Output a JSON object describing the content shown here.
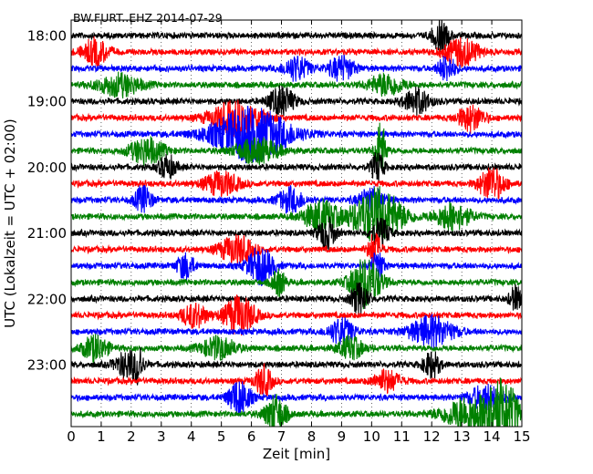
{
  "chart_data": {
    "type": "line",
    "title": "BW.FURT..EHZ 2014-07-29",
    "xlabel": "Zeit  [min]",
    "ylabel": "UTC (Lokalzeit = UTC + 02:00)",
    "xlim": [
      0,
      15
    ],
    "x_ticks": [
      0,
      1,
      2,
      3,
      4,
      5,
      6,
      7,
      8,
      9,
      10,
      11,
      12,
      13,
      14,
      15
    ],
    "x_tick_labels": [
      "0",
      "1",
      "2",
      "3",
      "4",
      "5",
      "6",
      "7",
      "8",
      "9",
      "10",
      "11",
      "12",
      "13",
      "14",
      "15"
    ],
    "y_tick_labels": [
      "18:00",
      "19:00",
      "20:00",
      "21:00",
      "22:00",
      "23:00"
    ],
    "trace_start_hour": 18,
    "trace_interval_minutes": 15,
    "trace_count": 24,
    "colors": [
      "#000000",
      "#ff0000",
      "#0000ff",
      "#008000"
    ],
    "grid": "vertical dotted at each minute",
    "series": [
      {
        "hour": 18,
        "minute": 0,
        "color": "#000000",
        "events": [
          {
            "t": 12.3,
            "a": 1.6,
            "w": 0.2
          }
        ]
      },
      {
        "hour": 18,
        "minute": 15,
        "color": "#ff0000",
        "events": [
          {
            "t": 0.8,
            "a": 1.4,
            "w": 0.3
          },
          {
            "t": 13.0,
            "a": 1.5,
            "w": 0.4
          }
        ]
      },
      {
        "hour": 18,
        "minute": 30,
        "color": "#0000ff",
        "events": [
          {
            "t": 7.5,
            "a": 1.3,
            "w": 0.3
          },
          {
            "t": 9.0,
            "a": 1.3,
            "w": 0.3
          },
          {
            "t": 12.5,
            "a": 1.4,
            "w": 0.2
          }
        ]
      },
      {
        "hour": 18,
        "minute": 45,
        "color": "#008000",
        "events": [
          {
            "t": 1.6,
            "a": 1.2,
            "w": 0.5
          },
          {
            "t": 10.5,
            "a": 1.2,
            "w": 0.4
          }
        ]
      },
      {
        "hour": 19,
        "minute": 0,
        "color": "#000000",
        "events": [
          {
            "t": 7.0,
            "a": 1.6,
            "w": 0.3
          },
          {
            "t": 11.5,
            "a": 1.4,
            "w": 0.3
          }
        ]
      },
      {
        "hour": 19,
        "minute": 15,
        "color": "#ff0000",
        "events": [
          {
            "t": 5.5,
            "a": 1.8,
            "w": 0.6
          },
          {
            "t": 13.3,
            "a": 1.4,
            "w": 0.3
          }
        ]
      },
      {
        "hour": 19,
        "minute": 30,
        "color": "#0000ff",
        "events": [
          {
            "t": 6.0,
            "a": 2.9,
            "w": 0.9
          }
        ]
      },
      {
        "hour": 19,
        "minute": 45,
        "color": "#008000",
        "events": [
          {
            "t": 2.5,
            "a": 1.4,
            "w": 0.4
          },
          {
            "t": 6.2,
            "a": 1.3,
            "w": 0.5
          },
          {
            "t": 10.3,
            "a": 3.2,
            "w": 0.12
          }
        ]
      },
      {
        "hour": 20,
        "minute": 0,
        "color": "#000000",
        "events": [
          {
            "t": 3.2,
            "a": 1.3,
            "w": 0.2
          },
          {
            "t": 10.2,
            "a": 1.6,
            "w": 0.15
          }
        ]
      },
      {
        "hour": 20,
        "minute": 15,
        "color": "#ff0000",
        "events": [
          {
            "t": 5.0,
            "a": 1.3,
            "w": 0.4
          },
          {
            "t": 14.0,
            "a": 1.8,
            "w": 0.3
          }
        ]
      },
      {
        "hour": 20,
        "minute": 30,
        "color": "#0000ff",
        "events": [
          {
            "t": 2.4,
            "a": 1.5,
            "w": 0.2
          },
          {
            "t": 7.3,
            "a": 1.3,
            "w": 0.3
          },
          {
            "t": 10.0,
            "a": 1.3,
            "w": 0.3
          }
        ]
      },
      {
        "hour": 20,
        "minute": 45,
        "color": "#008000",
        "events": [
          {
            "t": 8.3,
            "a": 1.7,
            "w": 0.4
          },
          {
            "t": 10.2,
            "a": 3.0,
            "w": 0.6
          },
          {
            "t": 12.7,
            "a": 1.5,
            "w": 0.4
          }
        ]
      },
      {
        "hour": 21,
        "minute": 0,
        "color": "#000000",
        "events": [
          {
            "t": 8.5,
            "a": 1.8,
            "w": 0.2
          },
          {
            "t": 10.3,
            "a": 1.6,
            "w": 0.2
          }
        ]
      },
      {
        "hour": 21,
        "minute": 15,
        "color": "#ff0000",
        "events": [
          {
            "t": 5.5,
            "a": 1.5,
            "w": 0.4
          },
          {
            "t": 10.1,
            "a": 1.8,
            "w": 0.15
          }
        ]
      },
      {
        "hour": 21,
        "minute": 30,
        "color": "#0000ff",
        "events": [
          {
            "t": 3.8,
            "a": 1.4,
            "w": 0.2
          },
          {
            "t": 6.3,
            "a": 2.0,
            "w": 0.3
          },
          {
            "t": 10.2,
            "a": 1.6,
            "w": 0.15
          }
        ]
      },
      {
        "hour": 21,
        "minute": 45,
        "color": "#008000",
        "events": [
          {
            "t": 6.9,
            "a": 1.5,
            "w": 0.15
          },
          {
            "t": 9.8,
            "a": 2.8,
            "w": 0.35
          }
        ]
      },
      {
        "hour": 22,
        "minute": 0,
        "color": "#000000",
        "events": [
          {
            "t": 9.6,
            "a": 1.7,
            "w": 0.2
          },
          {
            "t": 14.8,
            "a": 1.3,
            "w": 0.15
          }
        ]
      },
      {
        "hour": 22,
        "minute": 15,
        "color": "#ff0000",
        "events": [
          {
            "t": 4.1,
            "a": 1.3,
            "w": 0.3
          },
          {
            "t": 5.6,
            "a": 2.2,
            "w": 0.35
          }
        ]
      },
      {
        "hour": 22,
        "minute": 30,
        "color": "#0000ff",
        "events": [
          {
            "t": 9.0,
            "a": 1.4,
            "w": 0.3
          },
          {
            "t": 12.0,
            "a": 1.7,
            "w": 0.5
          }
        ]
      },
      {
        "hour": 22,
        "minute": 45,
        "color": "#008000",
        "events": [
          {
            "t": 0.8,
            "a": 1.4,
            "w": 0.3
          },
          {
            "t": 4.9,
            "a": 1.2,
            "w": 0.4
          },
          {
            "t": 9.3,
            "a": 1.2,
            "w": 0.3
          }
        ]
      },
      {
        "hour": 23,
        "minute": 0,
        "color": "#000000",
        "events": [
          {
            "t": 1.9,
            "a": 1.5,
            "w": 0.3
          },
          {
            "t": 2.25,
            "a": 1.8,
            "w": 0.08
          },
          {
            "t": 12.0,
            "a": 1.4,
            "w": 0.2
          }
        ]
      },
      {
        "hour": 23,
        "minute": 15,
        "color": "#ff0000",
        "events": [
          {
            "t": 6.4,
            "a": 1.6,
            "w": 0.2
          },
          {
            "t": 10.5,
            "a": 1.2,
            "w": 0.3
          }
        ]
      },
      {
        "hour": 23,
        "minute": 30,
        "color": "#0000ff",
        "events": [
          {
            "t": 5.6,
            "a": 2.0,
            "w": 0.25
          },
          {
            "t": 13.8,
            "a": 1.3,
            "w": 0.4
          }
        ]
      },
      {
        "hour": 23,
        "minute": 45,
        "color": "#008000",
        "events": [
          {
            "t": 6.8,
            "a": 2.0,
            "w": 0.25
          },
          {
            "t": 13.2,
            "a": 1.8,
            "w": 0.6
          },
          {
            "t": 14.15,
            "a": 3.4,
            "w": 0.3
          },
          {
            "t": 14.7,
            "a": 1.8,
            "w": 0.2
          }
        ]
      }
    ]
  }
}
